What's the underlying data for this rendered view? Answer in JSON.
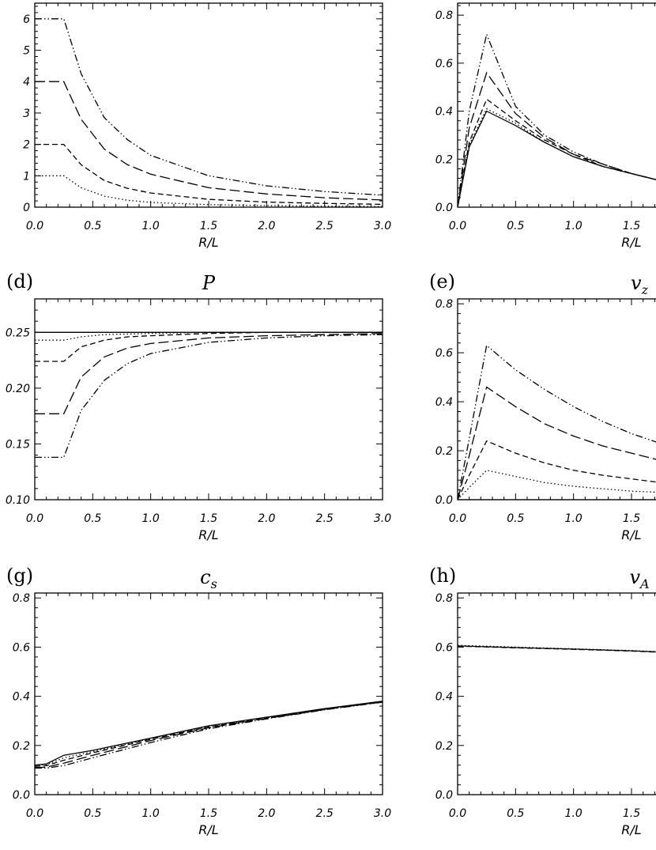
{
  "chart_data": [
    {
      "type": "line",
      "panel": "",
      "title": "",
      "xlabel": "R/L",
      "xlim": [
        0,
        3
      ],
      "ylim": [
        0,
        6.5
      ],
      "xticks": [
        "0.0",
        "0.5",
        "1.0",
        "1.5",
        "2.0",
        "2.5",
        "3.0"
      ],
      "yticks": [
        {
          "v": 0,
          "t": "0"
        },
        {
          "v": 1,
          "t": "1"
        },
        {
          "v": 2,
          "t": "2"
        },
        {
          "v": 3,
          "t": "3"
        },
        {
          "v": 4,
          "t": "4"
        },
        {
          "v": 5,
          "t": "5"
        },
        {
          "v": 6,
          "t": "6"
        }
      ],
      "series": [
        {
          "style": "dotted",
          "x": [
            0,
            0.25,
            0.4,
            0.6,
            0.8,
            1.0,
            1.5,
            2.0,
            2.5,
            3.0
          ],
          "y": [
            1,
            1,
            0.62,
            0.35,
            0.22,
            0.15,
            0.08,
            0.05,
            0.03,
            0.02
          ]
        },
        {
          "style": "dashed",
          "x": [
            0,
            0.25,
            0.4,
            0.6,
            0.8,
            1.0,
            1.5,
            2.0,
            2.5,
            3.0
          ],
          "y": [
            2,
            2,
            1.35,
            0.85,
            0.6,
            0.45,
            0.25,
            0.16,
            0.12,
            0.09
          ]
        },
        {
          "style": "longdash",
          "x": [
            0,
            0.25,
            0.4,
            0.6,
            0.8,
            1.0,
            1.5,
            2.0,
            2.5,
            3.0
          ],
          "y": [
            4,
            4,
            2.8,
            1.85,
            1.35,
            1.05,
            0.62,
            0.42,
            0.3,
            0.23
          ]
        },
        {
          "style": "dashdotdot",
          "x": [
            0,
            0.25,
            0.4,
            0.6,
            0.8,
            1.0,
            1.5,
            2.0,
            2.5,
            3.0
          ],
          "y": [
            6,
            6,
            4.25,
            2.85,
            2.15,
            1.65,
            1.0,
            0.68,
            0.5,
            0.38
          ]
        }
      ]
    },
    {
      "type": "line",
      "panel": "",
      "title": "",
      "xlabel": "R/L",
      "xlim": [
        0,
        3
      ],
      "ylim": [
        0,
        0.85
      ],
      "xticks": [
        "0.0",
        "0.5",
        "1.0",
        "1.5"
      ],
      "yticks": [
        {
          "v": 0,
          "t": "0.0"
        },
        {
          "v": 0.2,
          "t": "0.2"
        },
        {
          "v": 0.4,
          "t": "0.4"
        },
        {
          "v": 0.6,
          "t": "0.6"
        },
        {
          "v": 0.8,
          "t": "0.8"
        }
      ],
      "series": [
        {
          "style": "solid",
          "x": [
            0,
            0.1,
            0.25,
            0.5,
            0.75,
            1.0,
            1.25,
            1.5,
            1.75
          ],
          "y": [
            0,
            0.25,
            0.4,
            0.34,
            0.27,
            0.21,
            0.17,
            0.14,
            0.11
          ]
        },
        {
          "style": "dotted",
          "x": [
            0,
            0.1,
            0.25,
            0.5,
            0.75,
            1.0,
            1.25,
            1.5,
            1.75
          ],
          "y": [
            0,
            0.26,
            0.41,
            0.35,
            0.27,
            0.21,
            0.17,
            0.14,
            0.11
          ]
        },
        {
          "style": "dashed",
          "x": [
            0,
            0.1,
            0.25,
            0.5,
            0.75,
            1.0,
            1.25,
            1.5,
            1.75
          ],
          "y": [
            0,
            0.27,
            0.45,
            0.36,
            0.28,
            0.22,
            0.17,
            0.14,
            0.11
          ]
        },
        {
          "style": "longdash",
          "x": [
            0,
            0.1,
            0.25,
            0.5,
            0.75,
            1.0,
            1.25,
            1.5,
            1.75
          ],
          "y": [
            0,
            0.33,
            0.56,
            0.39,
            0.29,
            0.22,
            0.18,
            0.14,
            0.11
          ]
        },
        {
          "style": "dashdotdot",
          "x": [
            0,
            0.1,
            0.25,
            0.5,
            0.75,
            1.0,
            1.25,
            1.5,
            1.75
          ],
          "y": [
            0,
            0.4,
            0.72,
            0.42,
            0.3,
            0.23,
            0.18,
            0.14,
            0.11
          ]
        }
      ]
    },
    {
      "type": "line",
      "panel": "(d)",
      "title": "P",
      "xlabel": "R/L",
      "xlim": [
        0,
        3
      ],
      "ylim": [
        0.1,
        0.28
      ],
      "xticks": [
        "0.0",
        "0.5",
        "1.0",
        "1.5",
        "2.0",
        "2.5",
        "3.0"
      ],
      "yticks": [
        {
          "v": 0.1,
          "t": "0.10"
        },
        {
          "v": 0.15,
          "t": "0.15"
        },
        {
          "v": 0.2,
          "t": "0.20"
        },
        {
          "v": 0.25,
          "t": "0.25"
        }
      ],
      "series": [
        {
          "style": "solid",
          "x": [
            0,
            3.0
          ],
          "y": [
            0.25,
            0.25
          ]
        },
        {
          "style": "dotted",
          "x": [
            0,
            0.25,
            0.4,
            0.6,
            1.0,
            1.5,
            2.0,
            3.0
          ],
          "y": [
            0.243,
            0.243,
            0.246,
            0.248,
            0.249,
            0.25,
            0.25,
            0.25
          ]
        },
        {
          "style": "dashed",
          "x": [
            0,
            0.25,
            0.4,
            0.6,
            0.8,
            1.0,
            1.5,
            2.0,
            3.0
          ],
          "y": [
            0.224,
            0.224,
            0.237,
            0.243,
            0.246,
            0.247,
            0.249,
            0.25,
            0.25
          ]
        },
        {
          "style": "longdash",
          "x": [
            0,
            0.25,
            0.4,
            0.6,
            0.8,
            1.0,
            1.5,
            2.0,
            2.5,
            3.0
          ],
          "y": [
            0.177,
            0.177,
            0.21,
            0.228,
            0.236,
            0.24,
            0.245,
            0.247,
            0.248,
            0.249
          ]
        },
        {
          "style": "dashdotdot",
          "x": [
            0,
            0.25,
            0.4,
            0.6,
            0.8,
            1.0,
            1.5,
            2.0,
            2.5,
            3.0
          ],
          "y": [
            0.138,
            0.138,
            0.18,
            0.207,
            0.222,
            0.231,
            0.241,
            0.245,
            0.247,
            0.248
          ]
        }
      ]
    },
    {
      "type": "line",
      "panel": "(e)",
      "title": "v_z",
      "xlabel": "R/L",
      "xlim": [
        0,
        3
      ],
      "ylim": [
        0,
        0.82
      ],
      "xticks": [
        "0.0",
        "0.5",
        "1.0",
        "1.5"
      ],
      "yticks": [
        {
          "v": 0,
          "t": "0.0"
        },
        {
          "v": 0.2,
          "t": "0.2"
        },
        {
          "v": 0.4,
          "t": "0.4"
        },
        {
          "v": 0.6,
          "t": "0.6"
        },
        {
          "v": 0.8,
          "t": "0.8"
        }
      ],
      "series": [
        {
          "style": "solid",
          "x": [
            0,
            1.75
          ],
          "y": [
            0,
            0
          ]
        },
        {
          "style": "dotted",
          "x": [
            0,
            0.1,
            0.25,
            0.5,
            0.75,
            1.0,
            1.25,
            1.5,
            1.75
          ],
          "y": [
            0,
            0.05,
            0.12,
            0.095,
            0.07,
            0.055,
            0.045,
            0.035,
            0.03
          ]
        },
        {
          "style": "dashed",
          "x": [
            0,
            0.1,
            0.25,
            0.5,
            0.75,
            1.0,
            1.25,
            1.5,
            1.75
          ],
          "y": [
            0,
            0.1,
            0.24,
            0.19,
            0.15,
            0.12,
            0.1,
            0.085,
            0.07
          ]
        },
        {
          "style": "longdash",
          "x": [
            0,
            0.1,
            0.25,
            0.5,
            0.75,
            1.0,
            1.25,
            1.5,
            1.75
          ],
          "y": [
            0,
            0.18,
            0.46,
            0.38,
            0.31,
            0.26,
            0.22,
            0.19,
            0.16
          ]
        },
        {
          "style": "dashdotdot",
          "x": [
            0,
            0.1,
            0.25,
            0.5,
            0.75,
            1.0,
            1.25,
            1.5,
            1.75
          ],
          "y": [
            0,
            0.25,
            0.63,
            0.53,
            0.45,
            0.38,
            0.32,
            0.27,
            0.23
          ]
        }
      ]
    },
    {
      "type": "line",
      "panel": "(g)",
      "title": "c_s",
      "xlabel": "R/L",
      "xlim": [
        0,
        3
      ],
      "ylim": [
        0,
        0.82
      ],
      "xticks": [
        "0.0",
        "0.5",
        "1.0",
        "1.5",
        "2.0",
        "2.5",
        "3.0"
      ],
      "yticks": [
        {
          "v": 0,
          "t": "0.0"
        },
        {
          "v": 0.2,
          "t": "0.2"
        },
        {
          "v": 0.4,
          "t": "0.4"
        },
        {
          "v": 0.6,
          "t": "0.6"
        },
        {
          "v": 0.8,
          "t": "0.8"
        }
      ],
      "series": [
        {
          "style": "solid",
          "x": [
            0,
            0.1,
            0.25,
            0.5,
            1.0,
            1.5,
            2.0,
            2.5,
            3.0
          ],
          "y": [
            0.12,
            0.125,
            0.16,
            0.18,
            0.23,
            0.28,
            0.315,
            0.35,
            0.38
          ]
        },
        {
          "style": "dotted",
          "x": [
            0,
            0.1,
            0.25,
            0.5,
            1.0,
            1.5,
            2.0,
            2.5,
            3.0
          ],
          "y": [
            0.12,
            0.122,
            0.15,
            0.175,
            0.228,
            0.278,
            0.313,
            0.348,
            0.379
          ]
        },
        {
          "style": "dashed",
          "x": [
            0,
            0.1,
            0.25,
            0.5,
            1.0,
            1.5,
            2.0,
            2.5,
            3.0
          ],
          "y": [
            0.115,
            0.118,
            0.14,
            0.17,
            0.225,
            0.275,
            0.312,
            0.347,
            0.378
          ]
        },
        {
          "style": "longdash",
          "x": [
            0,
            0.1,
            0.25,
            0.5,
            1.0,
            1.5,
            2.0,
            2.5,
            3.0
          ],
          "y": [
            0.11,
            0.112,
            0.128,
            0.16,
            0.22,
            0.272,
            0.31,
            0.346,
            0.377
          ]
        },
        {
          "style": "dashdotdot",
          "x": [
            0,
            0.1,
            0.25,
            0.5,
            1.0,
            1.5,
            2.0,
            2.5,
            3.0
          ],
          "y": [
            0.108,
            0.108,
            0.118,
            0.15,
            0.212,
            0.268,
            0.308,
            0.345,
            0.376
          ]
        }
      ]
    },
    {
      "type": "line",
      "panel": "(h)",
      "title": "v_A",
      "xlabel": "R/L",
      "xlim": [
        0,
        3
      ],
      "ylim": [
        0,
        0.82
      ],
      "xticks": [
        "0.0",
        "0.5",
        "1.0",
        "1.5"
      ],
      "yticks": [
        {
          "v": 0,
          "t": "0.0"
        },
        {
          "v": 0.2,
          "t": "0.2"
        },
        {
          "v": 0.4,
          "t": "0.4"
        },
        {
          "v": 0.6,
          "t": "0.6"
        },
        {
          "v": 0.8,
          "t": "0.8"
        }
      ],
      "series": [
        {
          "style": "solid",
          "x": [
            0,
            0.5,
            1.0,
            1.5,
            1.75
          ],
          "y": [
            0.605,
            0.598,
            0.592,
            0.585,
            0.58
          ]
        },
        {
          "style": "dotted",
          "x": [
            0,
            0.5,
            1.0,
            1.5,
            1.75
          ],
          "y": [
            0.607,
            0.6,
            0.593,
            0.586,
            0.581
          ]
        },
        {
          "style": "dashed",
          "x": [
            0,
            0.5,
            1.0,
            1.5,
            1.75
          ],
          "y": [
            0.604,
            0.597,
            0.591,
            0.584,
            0.579
          ]
        }
      ]
    }
  ]
}
